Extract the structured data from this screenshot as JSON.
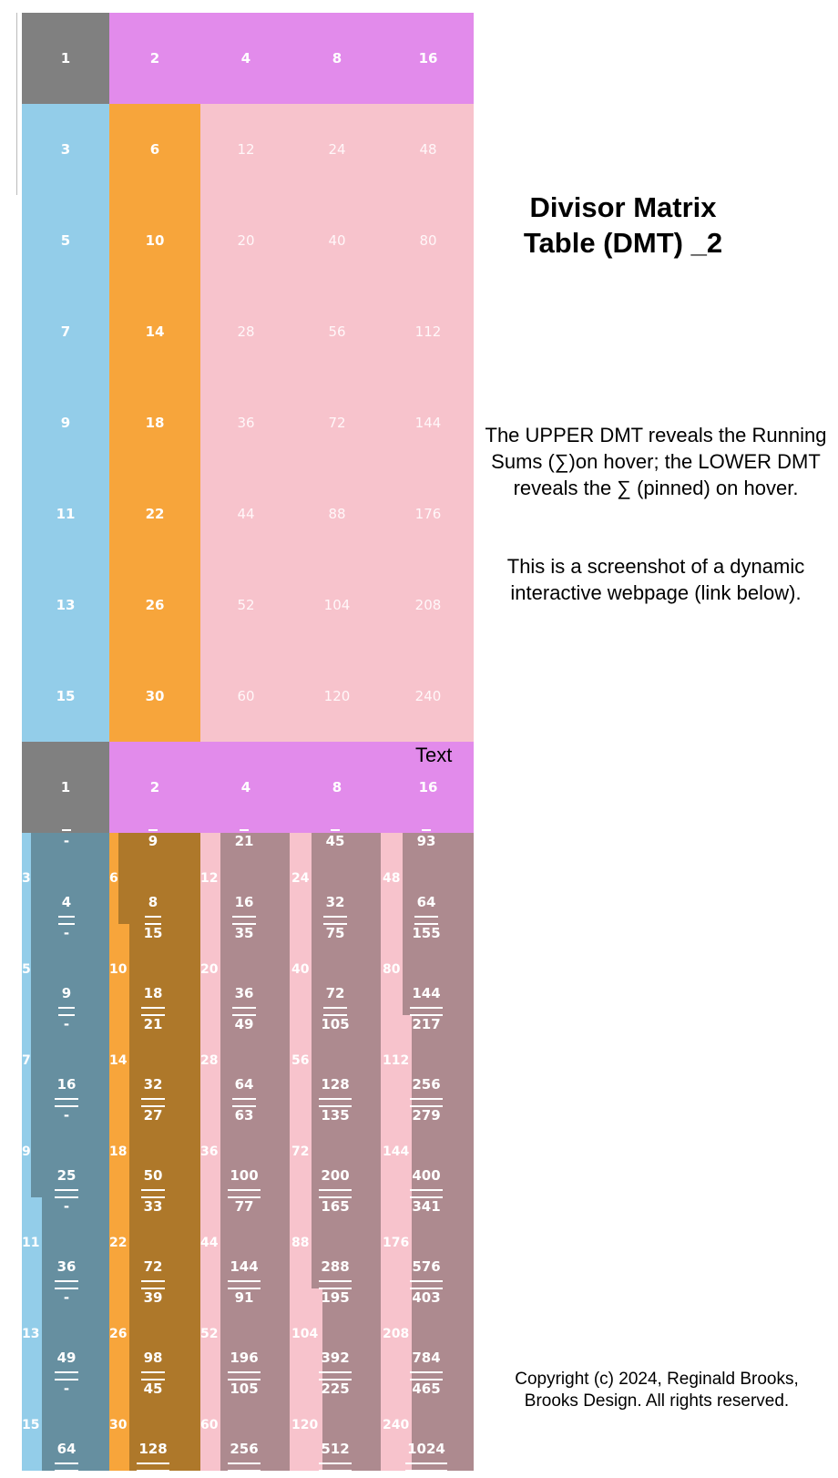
{
  "upper_table": {
    "header_row": [
      "1",
      "2",
      "4",
      "8",
      "16"
    ],
    "rows": [
      [
        "3",
        "6",
        "12",
        "24",
        "48"
      ],
      [
        "5",
        "10",
        "20",
        "40",
        "80"
      ],
      [
        "7",
        "14",
        "28",
        "56",
        "112"
      ],
      [
        "9",
        "18",
        "36",
        "72",
        "144"
      ],
      [
        "11",
        "22",
        "44",
        "88",
        "176"
      ],
      [
        "13",
        "26",
        "52",
        "104",
        "208"
      ],
      [
        "15",
        "30",
        "60",
        "120",
        "240"
      ]
    ]
  },
  "lower_table": {
    "text_label": "Text",
    "header_row": [
      "1",
      "2",
      "4",
      "8",
      "16"
    ],
    "row_labels": [
      [
        "3",
        "6",
        "12",
        "24",
        "48"
      ],
      [
        "5",
        "10",
        "20",
        "40",
        "80"
      ],
      [
        "7",
        "14",
        "28",
        "56",
        "112"
      ],
      [
        "9",
        "18",
        "36",
        "72",
        "144"
      ],
      [
        "11",
        "22",
        "44",
        "88",
        "176"
      ],
      [
        "13",
        "26",
        "52",
        "104",
        "208"
      ],
      [
        "15",
        "30",
        "60",
        "120",
        "240"
      ]
    ],
    "col1": [
      "-",
      "4",
      "-",
      "9",
      "-",
      "16",
      "-",
      "25",
      "-",
      "36",
      "-",
      "49",
      "-",
      "64"
    ],
    "col2": [
      "9",
      "8",
      "15",
      "18",
      "21",
      "32",
      "27",
      "50",
      "33",
      "72",
      "39",
      "98",
      "45",
      "128"
    ],
    "col3": [
      "21",
      "16",
      "35",
      "36",
      "49",
      "64",
      "63",
      "100",
      "77",
      "144",
      "91",
      "196",
      "105",
      "256"
    ],
    "col4": [
      "45",
      "32",
      "75",
      "72",
      "105",
      "128",
      "135",
      "200",
      "165",
      "288",
      "195",
      "392",
      "225",
      "512"
    ],
    "col5": [
      "93",
      "64",
      "155",
      "144",
      "217",
      "256",
      "279",
      "400",
      "341",
      "576",
      "403",
      "784",
      "465",
      "1024"
    ]
  },
  "side": {
    "title_line1": "Divisor Matrix",
    "title_line2": "Table (DMT) _2",
    "para1_line1": "The UPPER DMT reveals the Running",
    "para1_line2": "Sums (∑)on hover; the LOWER DMT",
    "para1_line3": "reveals the ∑ (pinned) on hover.",
    "para2_line1": "This is a screenshot of a dynamic",
    "para2_line2": "interactive webpage (link below).",
    "copyright_line1": "Copyright (c) 2024, Reginald Brooks,",
    "copyright_line2": "Brooks Design. All rights reserved."
  },
  "colors": {
    "gray": "#808080",
    "violet": "#e28beb",
    "blue": "#93cde9",
    "orange": "#f7a53b",
    "pink": "#f7c3cc",
    "slate": "#668fa0",
    "brown": "#ae782a",
    "mauve": "#ad8a8f"
  }
}
